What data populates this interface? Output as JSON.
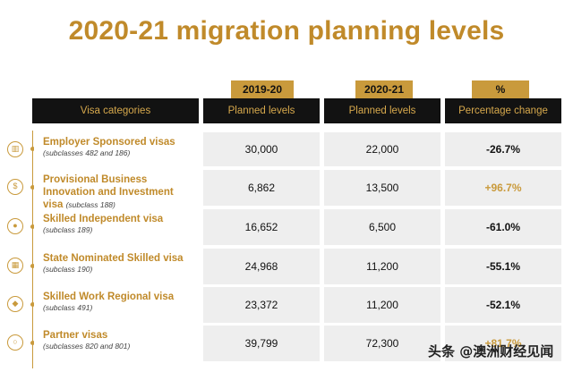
{
  "title": "2020-21 migration planning levels",
  "tags": {
    "y1920": "2019-20",
    "y2021": "2020-21",
    "pct": "%"
  },
  "headers": {
    "category": "Visa categories",
    "planned1": "Planned levels",
    "planned2": "Planned levels",
    "change": "Percentage change"
  },
  "rows": [
    {
      "name": "Employer Sponsored visas",
      "sub": "(subclasses 482 and 186)",
      "v1920": "30,000",
      "v2021": "22,000",
      "change": "-26.7%",
      "icon": "briefcase-icon"
    },
    {
      "name": "Provisional Business Innovation and Investment visa",
      "sub": "(subclass 188)",
      "v1920": "6,862",
      "v2021": "13,500",
      "change": "+96.7%",
      "icon": "dollar-icon"
    },
    {
      "name": "Skilled Independent visa",
      "sub": "(subclass 189)",
      "v1920": "16,652",
      "v2021": "6,500",
      "change": "-61.0%",
      "icon": "person-icon"
    },
    {
      "name": "State Nominated Skilled visa",
      "sub": "(subclass 190)",
      "v1920": "24,968",
      "v2021": "11,200",
      "change": "-55.1%",
      "icon": "building-icon"
    },
    {
      "name": "Skilled Work Regional visa",
      "sub": "(subclass 491)",
      "v1920": "23,372",
      "v2021": "11,200",
      "change": "-52.1%",
      "icon": "map-icon"
    },
    {
      "name": "Partner visas",
      "sub": "(subclasses 820 and 801)",
      "v1920": "39,799",
      "v2021": "72,300",
      "change": "+81.7%",
      "icon": "rings-icon"
    }
  ],
  "watermark": "头条 @澳洲财经见闻",
  "colors": {
    "gold": "#c99a3c",
    "header_bg": "#121212",
    "cell_bg": "#eeeeee"
  }
}
